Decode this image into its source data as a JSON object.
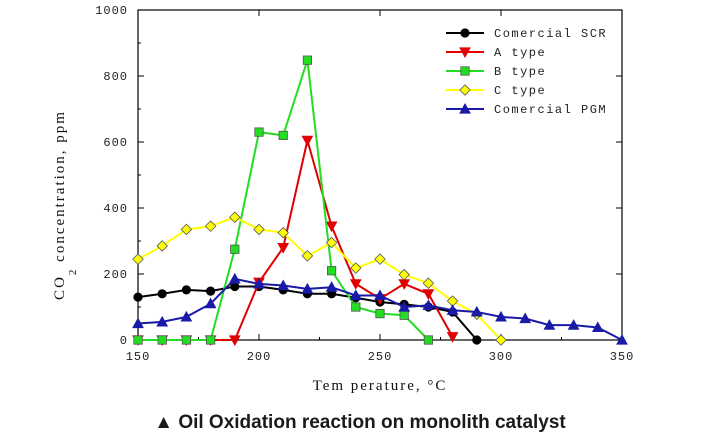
{
  "caption": "▲ Oil Oxidation reaction on monolith catalyst",
  "chart_data": {
    "type": "line",
    "xlabel": "Tem perature, °C",
    "ylabel": "CO2 concentration, ppm",
    "ylabel_main": "CO",
    "ylabel_sub": "2",
    "ylabel_rest": " concentration, ppm",
    "xlim": [
      150,
      350
    ],
    "ylim": [
      0,
      1000
    ],
    "x_ticks": [
      150,
      200,
      250,
      300,
      350
    ],
    "x_tick_labels": [
      "150",
      "200",
      "250",
      "300",
      "350"
    ],
    "y_ticks": [
      0,
      200,
      400,
      600,
      800,
      1000
    ],
    "y_tick_labels": [
      "0",
      "200",
      "400",
      "600",
      "800",
      "1000"
    ],
    "grid": false,
    "legend_position": "top-right",
    "series": [
      {
        "name": "Comercial SCR",
        "color": "#000000",
        "marker": "circle",
        "x": [
          150,
          160,
          170,
          180,
          190,
          200,
          210,
          220,
          230,
          240,
          250,
          260,
          270,
          280,
          290
        ],
        "y": [
          130,
          140,
          152,
          148,
          162,
          162,
          152,
          140,
          140,
          128,
          115,
          108,
          100,
          85,
          0
        ]
      },
      {
        "name": "A type",
        "color": "#e00000",
        "marker": "triangle-down",
        "x": [
          150,
          160,
          170,
          180,
          190,
          200,
          210,
          220,
          230,
          240,
          250,
          260,
          270,
          280
        ],
        "y": [
          0,
          0,
          0,
          0,
          0,
          175,
          280,
          605,
          345,
          170,
          125,
          170,
          140,
          10
        ]
      },
      {
        "name": "B type",
        "color": "#22dd22",
        "marker": "square",
        "x": [
          150,
          160,
          170,
          180,
          190,
          200,
          210,
          220,
          230,
          240,
          250,
          260,
          270
        ],
        "y": [
          0,
          0,
          0,
          0,
          275,
          630,
          620,
          848,
          210,
          100,
          80,
          75,
          0
        ]
      },
      {
        "name": "C type",
        "color": "#ffff00",
        "marker": "diamond",
        "x": [
          150,
          160,
          170,
          180,
          190,
          200,
          210,
          220,
          230,
          240,
          250,
          260,
          270,
          280,
          290,
          300
        ],
        "y": [
          245,
          285,
          335,
          345,
          372,
          335,
          325,
          255,
          295,
          218,
          245,
          198,
          172,
          118,
          78,
          0
        ]
      },
      {
        "name": "Comercial PGM",
        "color": "#1a1aa8",
        "marker": "triangle-up",
        "x": [
          150,
          160,
          170,
          180,
          190,
          200,
          210,
          220,
          230,
          240,
          250,
          260,
          270,
          280,
          290,
          300,
          310,
          320,
          330,
          340,
          350
        ],
        "y": [
          50,
          55,
          70,
          110,
          185,
          170,
          165,
          155,
          160,
          135,
          135,
          100,
          105,
          90,
          85,
          70,
          65,
          45,
          45,
          38,
          0
        ]
      }
    ]
  }
}
